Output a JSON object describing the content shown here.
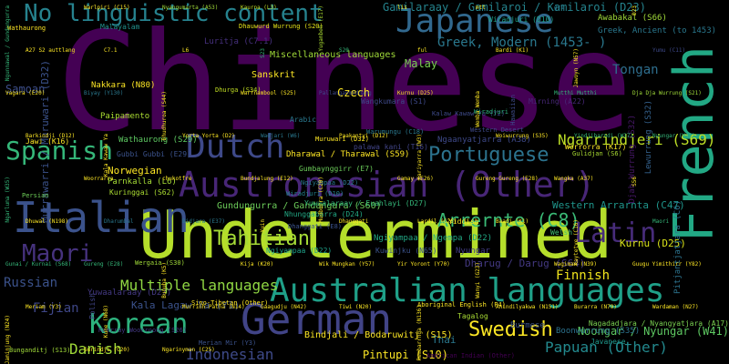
{
  "words": [
    {
      "text": "Chinese",
      "color": "#440154"
    },
    {
      "text": "Undetermined",
      "color": "#b5de2b"
    },
    {
      "text": "French",
      "color": "#22a884"
    },
    {
      "text": "Austronesian (Other)",
      "color": "#482677"
    },
    {
      "text": "Australian languages",
      "color": "#1fa088"
    },
    {
      "text": "German",
      "color": "#414487"
    },
    {
      "text": "Italian",
      "color": "#3b528b"
    },
    {
      "text": "Japanese",
      "color": "#31688e"
    },
    {
      "text": "No linguistic content",
      "color": "#26828e"
    },
    {
      "text": "Dutch",
      "color": "#3e4989"
    },
    {
      "text": "Korean",
      "color": "#2db27d"
    },
    {
      "text": "Latin",
      "color": "#472c7a"
    },
    {
      "text": "Maori",
      "color": "#46327e"
    },
    {
      "text": "Spanish",
      "color": "#35b779"
    },
    {
      "text": "Portuguese",
      "color": "#2c738e"
    },
    {
      "text": "Swedish",
      "color": "#fde725"
    },
    {
      "text": "Arrernte (C8)",
      "color": "#3aba76"
    },
    {
      "text": "Ngarrindjeri (S69)",
      "color": "#bddf26"
    },
    {
      "text": "Tahitian",
      "color": "#a5db36"
    },
    {
      "text": "Greek, Modern (1453- )",
      "color": "#2a788e"
    },
    {
      "text": "Gamilaraay / Gamilaroi / Kamilaroi (D23)",
      "color": "#25848e"
    },
    {
      "text": "Multiple languages",
      "color": "#90d743"
    },
    {
      "text": "Danish",
      "color": "#a0da39"
    },
    {
      "text": "Russian",
      "color": "#3b528b"
    },
    {
      "text": "Papuan (Other)",
      "color": "#23898e"
    },
    {
      "text": "Indonesian",
      "color": "#3e4a89"
    },
    {
      "text": "Tongan",
      "color": "#2e6e8e"
    },
    {
      "text": "Fijian",
      "color": "#3f4788"
    },
    {
      "text": "Samoan",
      "color": "#3d4e8a"
    },
    {
      "text": "Finnish",
      "color": "#f1e51d"
    },
    {
      "text": "Czech",
      "color": "#fde725"
    },
    {
      "text": "Malay",
      "color": "#7ad151"
    },
    {
      "text": "Pintupi (S10)",
      "color": "#fde725"
    },
    {
      "text": "Noongar / Nyungar (W41)",
      "color": "#5ec962"
    },
    {
      "text": "Western Arrarnta (C47)",
      "color": "#1f958b"
    },
    {
      "text": "Kurnu (D25)",
      "color": "#d8e219"
    },
    {
      "text": "Norwegian",
      "color": "#fde725"
    },
    {
      "text": "Thai",
      "color": "#2a788e"
    },
    {
      "text": "Sanskrit",
      "color": "#fde725"
    },
    {
      "text": "Miscellaneous languages",
      "color": "#a0da39"
    },
    {
      "text": "Kala Lagaw Ya (Y1)",
      "color": "#3b528b"
    },
    {
      "text": "Wathaurong (S29)",
      "color": "#5ec962"
    },
    {
      "text": "Parnkalla (L6)",
      "color": "#a5db36"
    },
    {
      "text": "Gundungurra / Gandangara (S60)",
      "color": "#6ccd5a"
    },
    {
      "text": "Bindjali / Bodaruwitj (S15)",
      "color": "#fde725"
    },
    {
      "text": "Ngaanyatjarra (A38)",
      "color": "#3e4989"
    },
    {
      "text": "Boonwurrung (S35)",
      "color": "#2c728e"
    },
    {
      "text": "Burmese",
      "color": "#3b528b"
    },
    {
      "text": "Gumbaynggirr (E7)",
      "color": "#6ccd5a"
    },
    {
      "text": "Nakkara (N80)",
      "color": "#fde725"
    },
    {
      "text": "Paipamento",
      "color": "#aadc32"
    },
    {
      "text": "Greek, Ancient (to 1453)",
      "color": "#2a788e"
    },
    {
      "text": "Awabakal (S66)",
      "color": "#a0da39"
    },
    {
      "text": "Luritja (C7.1)",
      "color": "#46307e"
    },
    {
      "text": "Wangkumara (S1)",
      "color": "#3e4989"
    },
    {
      "text": "palawa kani (T16)",
      "color": "#414487"
    },
    {
      "text": "Mirning (A22)",
      "color": "#482878"
    },
    {
      "text": "Gubbi Gubbi (E29)",
      "color": "#3b528b"
    },
    {
      "text": "Kuringgai (S62)",
      "color": "#aadc32"
    },
    {
      "text": "Jawi (K16)",
      "color": "#fde725"
    },
    {
      "text": "Yiddish",
      "color": "#fde725"
    },
    {
      "text": "Tagalog",
      "color": "#a8db34"
    },
    {
      "text": "Welsh",
      "color": "#44bf70"
    },
    {
      "text": "Polish",
      "color": "#414487"
    },
    {
      "text": "Murrawarri / Muruwari (D32)",
      "color": "#3b528b"
    },
    {
      "text": "Malayalam",
      "color": "#21918c"
    },
    {
      "text": "Arabic",
      "color": "#2a788e"
    },
    {
      "text": "Djab Wurrung (S32)",
      "color": "#48186a"
    },
    {
      "text": "Lewurrung (S32)",
      "color": "#34618d"
    },
    {
      "text": "Pitjantjatjara (C6)",
      "color": "#2c738e"
    },
    {
      "text": "Worrorra (K17)",
      "color": "#fde725"
    },
    {
      "text": "Gulidjan (S6)",
      "color": "#aadc32"
    },
    {
      "text": "Dharug / Darug (S64)",
      "color": "#443983"
    },
    {
      "text": "Nyungar",
      "color": "#433d84"
    },
    {
      "text": "Hawaiian",
      "color": "#3e4a89"
    },
    {
      "text": "Wiradjuri (D10)",
      "color": "#1fa188"
    },
    {
      "text": "Nagadadjara / Nyangyatjara (A17)",
      "color": "#7ad151"
    },
    {
      "text": "Ngiyampaa / Ngempa (D22)",
      "color": "#22a884"
    },
    {
      "text": "Kuwinjku (N65)",
      "color": "#3b528b"
    },
    {
      "text": "Dhurga (S34)",
      "color": "#c2df23"
    },
    {
      "text": "Dhauwurd Wurrung (S20)",
      "color": "#e5e419"
    },
    {
      "text": "Wergaia (S30)",
      "color": "#a0da39"
    },
    {
      "text": "Bunganditj (S13)",
      "color": "#a0da39"
    },
    {
      "text": "Keerray Woorroong (S26)",
      "color": "#443983"
    },
    {
      "text": "Merian Mir (Y3)",
      "color": "#3b528b"
    },
    {
      "text": "Sino-Tibetan (Other)",
      "color": "#fde725"
    },
    {
      "text": "Aboriginal English (P4)",
      "color": "#fde725"
    },
    {
      "text": "Kalaw Kawaw Ya (Y2)",
      "color": "#3e4a89"
    },
    {
      "text": "American Indian (Other)",
      "color": "#440154"
    },
    {
      "text": "Persian",
      "color": "#6ece58"
    },
    {
      "text": "Javanese",
      "color": "#1f988b"
    },
    {
      "text": "Yuwaalaraay (D27)",
      "color": "#443983"
    },
    {
      "text": "Ngiyampaa (D22)",
      "color": "#2a788e"
    },
    {
      "text": "Wiradjuri (D10)",
      "color": "#25838e"
    },
    {
      "text": "Ngiyampaa (D22)",
      "color": "#1fa088"
    },
    {
      "text": "Wiradjuri",
      "color": "#2db27d"
    },
    {
      "text": "Western Desert",
      "color": "#3e4989"
    },
    {
      "text": "Warumungu (C18)",
      "color": "#2a788e"
    },
    {
      "text": "Yuwaalaraay / Euahlayi (D27)",
      "color": "#35b779"
    },
    {
      "text": "Wathaurong",
      "color": "#fde725"
    },
    {
      "text": "Dharawal / Tharawal (S59)",
      "color": "#fde725"
    },
    {
      "text": "Dhanggati (E8)",
      "color": "#3b528b"
    },
    {
      "text": "Nhunggabarra (D24)",
      "color": "#22a884"
    },
    {
      "text": "Muruwari (D32)",
      "color": "#fde725"
    },
    {
      "text": "Ngunnawal / Gundungurra",
      "color": "#35b779"
    },
    {
      "text": "Warlpiri (C15)",
      "color": "#fde725"
    },
    {
      "text": "Nyangumarta (A53)",
      "color": "#a0da39"
    },
    {
      "text": "Kaurna (L3)",
      "color": "#c2df23"
    },
    {
      "text": "Yugambeh (E17)",
      "color": "#aadc32"
    },
    {
      "text": "lis",
      "color": "#fde725"
    },
    {
      "text": "mtt",
      "color": "#fde725"
    },
    {
      "text": "gri",
      "color": "#2a788e"
    },
    {
      "text": "D23",
      "color": "#fde725"
    },
    {
      "text": "A27 S2 auttlang",
      "color": "#fde725"
    },
    {
      "text": "C7.1",
      "color": "#fde725"
    },
    {
      "text": "L6",
      "color": "#fde725"
    },
    {
      "text": "S23",
      "color": "#35b779"
    },
    {
      "text": "S20",
      "color": "#35b779"
    },
    {
      "text": "ful",
      "color": "#fde725"
    },
    {
      "text": "Bardi (K1)",
      "color": "#fde725"
    },
    {
      "text": "Jawoyn (N57)",
      "color": "#fde725"
    },
    {
      "text": "Yumu (C11)",
      "color": "#3e4989"
    },
    {
      "text": "Vagara (E20)",
      "color": "#fde725"
    },
    {
      "text": "Biyay (Y130)",
      "color": "#2a788e"
    },
    {
      "text": "Dhudhuroa (S44)",
      "color": "#fde725"
    },
    {
      "text": "Warrnambool (S25)",
      "color": "#fde725"
    },
    {
      "text": "Pallanganmiddang",
      "color": "#3e4989"
    },
    {
      "text": "Kurnu (D25)",
      "color": "#fde725"
    },
    {
      "text": "Wemba Wemba",
      "color": "#fde725"
    },
    {
      "text": "Mutthi Mutthi",
      "color": "#35b779"
    },
    {
      "text": "Dja Dja Wurrung (S21)",
      "color": "#a0da39"
    },
    {
      "text": "Barkindji (D12)",
      "color": "#fde725"
    },
    {
      "text": "Kala Kawaw Ya",
      "color": "#fde725"
    },
    {
      "text": "Yorta Yorta (D2)",
      "color": "#fde725"
    },
    {
      "text": "Wadjari (W6)",
      "color": "#2a788e"
    },
    {
      "text": "Paakantyi (D12)",
      "color": "#fde725"
    },
    {
      "text": "Kariyarra (W3)",
      "color": "#fde725"
    },
    {
      "text": "Woiwurrung (S35)",
      "color": "#fde725"
    },
    {
      "text": "Yindjibarndi (W37)",
      "color": "#35b779"
    },
    {
      "text": "Nyungar (W41)",
      "color": "#35b779"
    },
    {
      "text": "Ngarluma (W35)",
      "color": "#35b779"
    },
    {
      "text": "Woorrarra",
      "color": "#fde725"
    },
    {
      "text": "chukotfre",
      "color": "#fde725"
    },
    {
      "text": "Bundjalung (E12)",
      "color": "#fde725"
    },
    {
      "text": "Mudburra (C20)",
      "color": "#fde725"
    },
    {
      "text": "Gamay (E26)",
      "color": "#fde725"
    },
    {
      "text": "Gureng Gureng (E28)",
      "color": "#fde725"
    },
    {
      "text": "Wangka (A37)",
      "color": "#fde725"
    },
    {
      "text": "S56",
      "color": "#fde725"
    },
    {
      "text": "Dhuwal (N198)",
      "color": "#fde725"
    },
    {
      "text": "Dharumbal",
      "color": "#2a788e"
    },
    {
      "text": "Bidjara (E37)",
      "color": "#2a788e"
    },
    {
      "text": "Yuin",
      "color": "#fde725"
    },
    {
      "text": "Dhanggati",
      "color": "#fde725"
    },
    {
      "text": "Lardil (G26)",
      "color": "#fde725"
    },
    {
      "text": "Baadi (K1)",
      "color": "#fde725"
    },
    {
      "text": "Kaytetye (C16)",
      "color": "#fde725"
    },
    {
      "text": "Maori",
      "color": "#35b779"
    },
    {
      "text": "Gunai / Kurnai (S68)",
      "color": "#35b779"
    },
    {
      "text": "Gureng (E28)",
      "color": "#35b779"
    },
    {
      "text": "Bunuba (K5)",
      "color": "#fde725"
    },
    {
      "text": "Kija (K20)",
      "color": "#fde725"
    },
    {
      "text": "Wik Mungkan (Y57)",
      "color": "#fde725"
    },
    {
      "text": "Yir Yoront (Y70)",
      "color": "#fde725"
    },
    {
      "text": "Wanyi (G23)",
      "color": "#fde725"
    },
    {
      "text": "Wagiman (N39)",
      "color": "#fde725"
    },
    {
      "text": "Guugu Yimithirr (Y82)",
      "color": "#fde725"
    },
    {
      "text": "Meriam (Y3)",
      "color": "#fde725"
    },
    {
      "text": "Kune (N68)",
      "color": "#fde725"
    },
    {
      "text": "Murrinh-Patha (N14)",
      "color": "#fde725"
    },
    {
      "text": "Gaagudju (N42)",
      "color": "#fde725"
    },
    {
      "text": "Tiwi (N20)",
      "color": "#fde725"
    },
    {
      "text": "Rembarrnga (N136)",
      "color": "#fde725"
    },
    {
      "text": "Anindilyakwa (N151)",
      "color": "#fde725"
    },
    {
      "text": "Burarra (N79)",
      "color": "#fde725"
    },
    {
      "text": "Wardaman (N27)",
      "color": "#fde725"
    },
    {
      "text": "Jaminjung (N24)",
      "color": "#fde725"
    },
    {
      "text": "Gurindji (C20)",
      "color": "#fde725"
    },
    {
      "text": "Ngarinyman (C25)",
      "color": "#fde725"
    }
  ]
}
